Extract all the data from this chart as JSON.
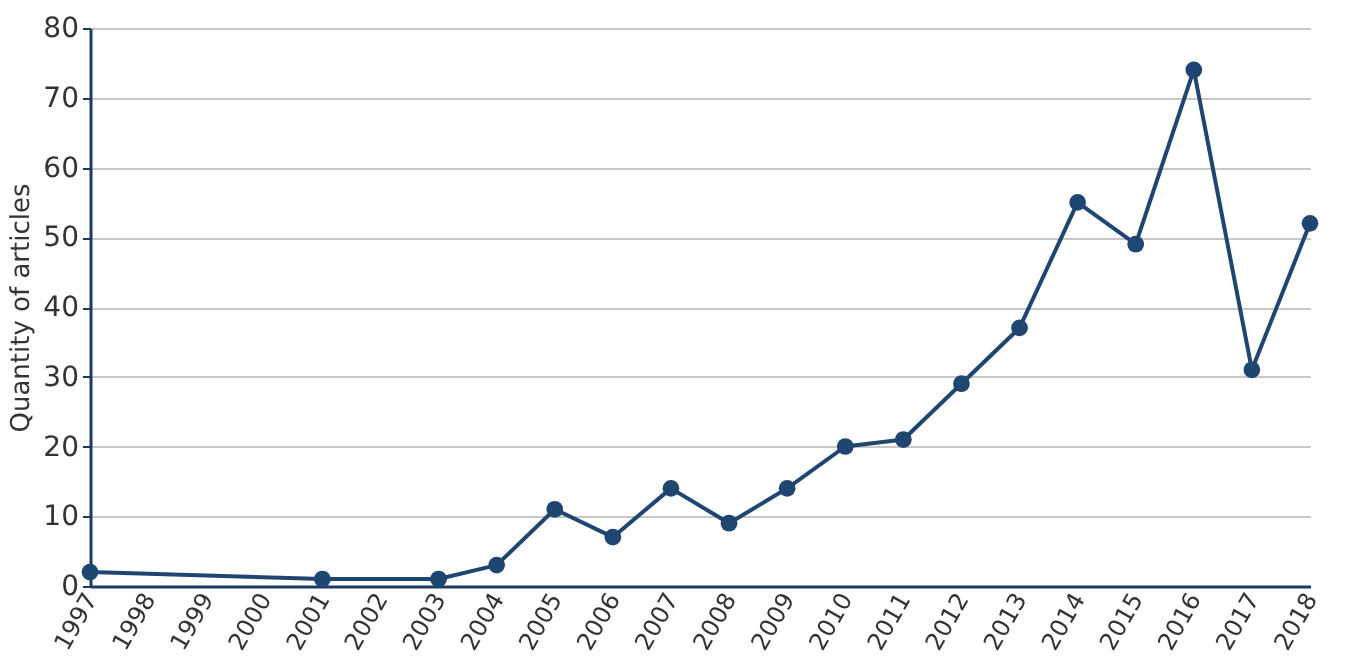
{
  "chart_data": {
    "type": "line",
    "ylabel": "Quantity of articles",
    "x": [
      1997,
      2001,
      2003,
      2004,
      2005,
      2006,
      2007,
      2008,
      2009,
      2010,
      2011,
      2012,
      2013,
      2014,
      2015,
      2016,
      2017,
      2018
    ],
    "series": [
      {
        "color": "#1f4571",
        "values": [
          2,
          1,
          1,
          3,
          11,
          7,
          14,
          9,
          14,
          20,
          21,
          29,
          37,
          55,
          49,
          74,
          31,
          52
        ]
      }
    ],
    "xlim": [
      1997,
      2018
    ],
    "xticks": [
      1997,
      1998,
      1999,
      2000,
      2001,
      2002,
      2003,
      2004,
      2005,
      2006,
      2007,
      2008,
      2009,
      2010,
      2011,
      2012,
      2013,
      2014,
      2015,
      2016,
      2017,
      2018
    ],
    "ylim": [
      0,
      80
    ],
    "yticks": [
      0,
      10,
      20,
      30,
      40,
      50,
      60,
      70,
      80
    ],
    "grid": "y",
    "marker": "circle",
    "line_style": "solid"
  }
}
